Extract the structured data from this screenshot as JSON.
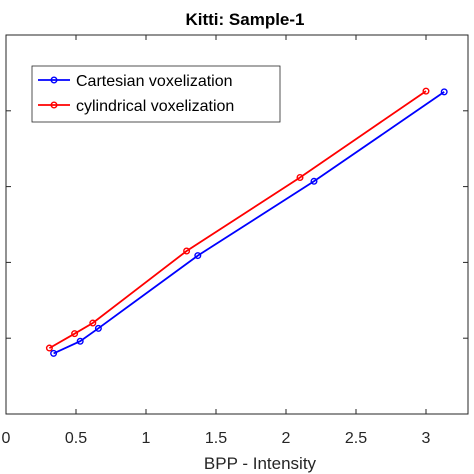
{
  "chart_data": {
    "type": "line",
    "title": "Kitti: Sample-1",
    "xlabel": "BPP - Intensity",
    "ylabel": "",
    "xlim": [
      0,
      3.3
    ],
    "ylim": [
      0,
      5
    ],
    "xticks": [
      0,
      0.5,
      1,
      1.5,
      2,
      2.5,
      3
    ],
    "xtick_labels": [
      "0",
      "0.5",
      "1",
      "1.5",
      "2",
      "2.5",
      "3"
    ],
    "yticks": [
      1,
      2,
      3,
      4
    ],
    "grid": false,
    "legend_position": "top-left",
    "series": [
      {
        "name": "Cartesian voxelization",
        "color": "#0000ff",
        "marker": "circle",
        "x": [
          0.34,
          0.53,
          0.66,
          1.37,
          2.2,
          3.13
        ],
        "y": [
          0.8,
          0.96,
          1.13,
          2.09,
          3.07,
          4.25
        ]
      },
      {
        "name": "cylindrical voxelization",
        "color": "#ff0000",
        "marker": "circle",
        "x": [
          0.31,
          0.49,
          0.62,
          1.29,
          2.1,
          3.0
        ],
        "y": [
          0.87,
          1.06,
          1.2,
          2.15,
          3.12,
          4.26
        ]
      }
    ]
  }
}
